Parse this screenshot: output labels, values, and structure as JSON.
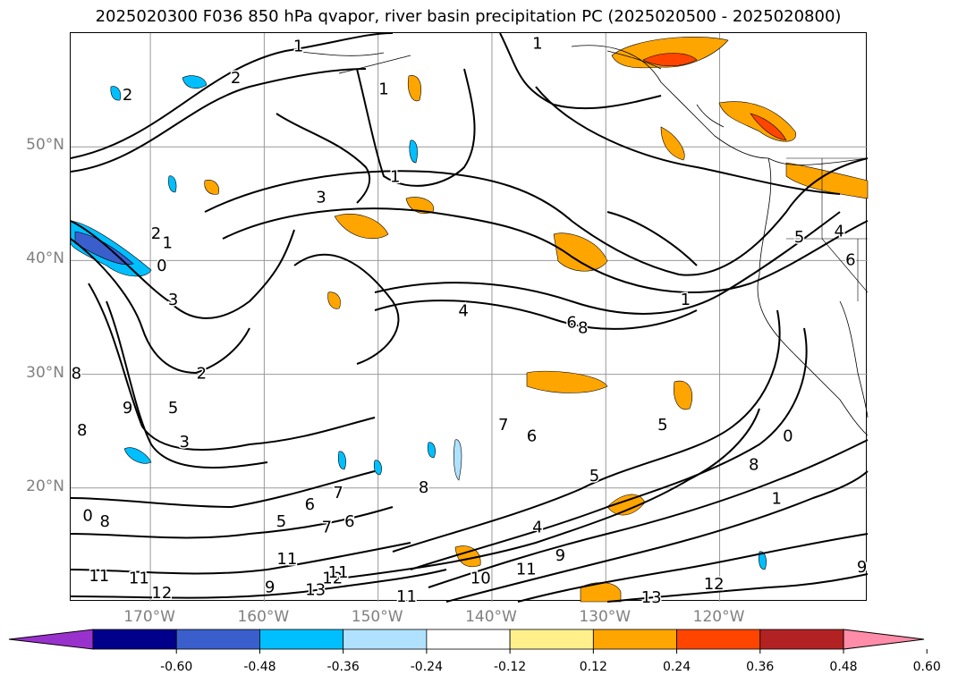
{
  "title": "2025020300 F036 850 hPa qvapor, river basin precipitation PC (2025020500 - 2025020800)",
  "map": {
    "projection": "cylindrical",
    "lon_range": [
      -177,
      -107
    ],
    "lat_range": [
      10,
      60
    ],
    "lat_ticks": [
      {
        "value": 20,
        "label": "20°N"
      },
      {
        "value": 30,
        "label": "30°N"
      },
      {
        "value": 40,
        "label": "40°N"
      },
      {
        "value": 50,
        "label": "50°N"
      }
    ],
    "lon_ticks": [
      {
        "value": -170,
        "label": "170°W"
      },
      {
        "value": -160,
        "label": "160°W"
      },
      {
        "value": -150,
        "label": "150°W"
      },
      {
        "value": -140,
        "label": "140°W"
      },
      {
        "value": -130,
        "label": "130°W"
      },
      {
        "value": -120,
        "label": "120°W"
      }
    ],
    "grid": true,
    "contour_color": "#000000",
    "contour_labels": [
      {
        "text": "2",
        "lon": -172,
        "lat": 54.5
      },
      {
        "text": "2",
        "lon": -162.5,
        "lat": 56
      },
      {
        "text": "1",
        "lon": -168.5,
        "lat": 41.5
      },
      {
        "text": "0",
        "lon": -169,
        "lat": 39.5
      },
      {
        "text": "2",
        "lon": -169.5,
        "lat": 42.3
      },
      {
        "text": "3",
        "lon": -168,
        "lat": 36.5
      },
      {
        "text": "2",
        "lon": -165.5,
        "lat": 30
      },
      {
        "text": "5",
        "lon": -168,
        "lat": 27
      },
      {
        "text": "3",
        "lon": -167,
        "lat": 24
      },
      {
        "text": "9",
        "lon": -172,
        "lat": 27
      },
      {
        "text": "8",
        "lon": -176.5,
        "lat": 30
      },
      {
        "text": "8",
        "lon": -176,
        "lat": 25
      },
      {
        "text": "0",
        "lon": -175.5,
        "lat": 17.5
      },
      {
        "text": "8",
        "lon": -174,
        "lat": 17
      },
      {
        "text": "11",
        "lon": -174.5,
        "lat": 12.2
      },
      {
        "text": "11",
        "lon": -171,
        "lat": 12
      },
      {
        "text": "12",
        "lon": -169,
        "lat": 10.7
      },
      {
        "text": "6",
        "lon": -156,
        "lat": 18.5
      },
      {
        "text": "5",
        "lon": -158.5,
        "lat": 17
      },
      {
        "text": "7",
        "lon": -153.5,
        "lat": 19.5
      },
      {
        "text": "7",
        "lon": -154.5,
        "lat": 16.5
      },
      {
        "text": "6",
        "lon": -152.5,
        "lat": 17
      },
      {
        "text": "11",
        "lon": -158,
        "lat": 13.7
      },
      {
        "text": "9",
        "lon": -159.5,
        "lat": 11.2
      },
      {
        "text": "13",
        "lon": -155.5,
        "lat": 11
      },
      {
        "text": "12",
        "lon": -154,
        "lat": 12
      },
      {
        "text": "11",
        "lon": -153.5,
        "lat": 12.5
      },
      {
        "text": "11",
        "lon": -147.5,
        "lat": 10.4
      },
      {
        "text": "1",
        "lon": -157,
        "lat": 58.8
      },
      {
        "text": "1",
        "lon": -149.5,
        "lat": 55
      },
      {
        "text": "1",
        "lon": -148.5,
        "lat": 47.3
      },
      {
        "text": "3",
        "lon": -155,
        "lat": 45.5
      },
      {
        "text": "1",
        "lon": -136,
        "lat": 59
      },
      {
        "text": "4",
        "lon": -142.5,
        "lat": 35.5
      },
      {
        "text": "1",
        "lon": -123,
        "lat": 36.5
      },
      {
        "text": "6",
        "lon": -133,
        "lat": 34.5
      },
      {
        "text": "8",
        "lon": -132,
        "lat": 34
      },
      {
        "text": "7",
        "lon": -139,
        "lat": 25.5
      },
      {
        "text": "6",
        "lon": -136.5,
        "lat": 24.5
      },
      {
        "text": "8",
        "lon": -146,
        "lat": 20
      },
      {
        "text": "4",
        "lon": -136,
        "lat": 16.5
      },
      {
        "text": "5",
        "lon": -131,
        "lat": 21
      },
      {
        "text": "9",
        "lon": -134,
        "lat": 14
      },
      {
        "text": "11",
        "lon": -137,
        "lat": 12.8
      },
      {
        "text": "10",
        "lon": -141,
        "lat": 12
      },
      {
        "text": "13",
        "lon": -126,
        "lat": 10.3
      },
      {
        "text": "12",
        "lon": -120.5,
        "lat": 11.5
      },
      {
        "text": "5",
        "lon": -125,
        "lat": 25.5
      },
      {
        "text": "5",
        "lon": -113,
        "lat": 42
      },
      {
        "text": "6",
        "lon": -108.5,
        "lat": 40
      },
      {
        "text": "4",
        "lon": -109.5,
        "lat": 42.5
      },
      {
        "text": "0",
        "lon": -114,
        "lat": 24.5
      },
      {
        "text": "8",
        "lon": -117,
        "lat": 22
      },
      {
        "text": "1",
        "lon": -115,
        "lat": 19
      },
      {
        "text": "9",
        "lon": -107.5,
        "lat": 13
      }
    ],
    "colorbar": {
      "ticks": [
        "-0.60",
        "-0.48",
        "-0.36",
        "-0.24",
        "-0.12",
        "0.12",
        "0.24",
        "0.36",
        "0.48",
        "0.60"
      ],
      "colors": [
        "#9932cc",
        "#00008b",
        "#3a5fcd",
        "#00bfff",
        "#b0e2ff",
        "#ffffff",
        "#fff08c",
        "#ffa500",
        "#ff4500",
        "#b22222",
        "#ff8ca8"
      ]
    }
  }
}
